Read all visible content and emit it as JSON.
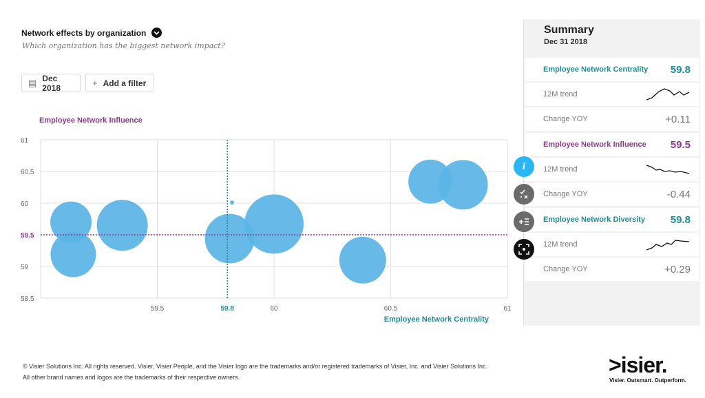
{
  "header": {
    "title": "Network effects by organization",
    "subtitle": "Which organization has the biggest network impact?"
  },
  "toolbar": {
    "date_label": "Dec 2018",
    "filter_label": "Add a filter"
  },
  "chart_data": {
    "type": "scatter",
    "title": "Network effects by organization",
    "xlabel": "Employee Network Centrality",
    "ylabel": "Employee Network Influence",
    "xlim": [
      59.0,
      61.0
    ],
    "ylim": [
      58.5,
      61.0
    ],
    "xticks": [
      "59.5",
      "59.8",
      "60",
      "60.5",
      "61"
    ],
    "xtick_values": [
      59.5,
      59.8,
      60.0,
      60.5,
      61.0
    ],
    "yticks": [
      "61",
      "60.5",
      "60",
      "59.5",
      "59",
      "58.5"
    ],
    "ytick_values": [
      61.0,
      60.5,
      60.0,
      59.5,
      59.0,
      58.5
    ],
    "reference_x": 59.8,
    "reference_y": 59.5,
    "bubble_color": "#5ab4e6",
    "points": [
      {
        "x": 59.13,
        "y": 59.7,
        "size": 30
      },
      {
        "x": 59.14,
        "y": 59.19,
        "size": 33
      },
      {
        "x": 59.35,
        "y": 59.65,
        "size": 37
      },
      {
        "x": 59.81,
        "y": 59.44,
        "size": 36
      },
      {
        "x": 59.82,
        "y": 60.01,
        "size": 3
      },
      {
        "x": 60.0,
        "y": 59.67,
        "size": 43
      },
      {
        "x": 60.38,
        "y": 59.1,
        "size": 34
      },
      {
        "x": 60.67,
        "y": 60.34,
        "size": 32
      },
      {
        "x": 60.81,
        "y": 60.29,
        "size": 36
      }
    ]
  },
  "summary": {
    "title": "Summary",
    "date": "Dec 31 2018",
    "metrics": [
      {
        "name": "Employee Network Centrality",
        "value": "59.8",
        "trend_label": "12M trend",
        "change_label": "Change YOY",
        "change": "+0.11",
        "color": "#1f8a99"
      },
      {
        "name": "Employee Network Influence",
        "value": "59.5",
        "trend_label": "12M trend",
        "change_label": "Change YOY",
        "change": "-0.44",
        "color": "#8e3a8e"
      },
      {
        "name": "Employee Network Diversity",
        "value": "59.8",
        "trend_label": "12M trend",
        "change_label": "Change YOY",
        "change": "+0.29",
        "color": "#1f8a99"
      }
    ]
  },
  "colors": {
    "centrality": "#1f8a99",
    "influence": "#8e3a8e",
    "info_button": "#29b6f6"
  },
  "footer": {
    "line1": "© Visier Solutions Inc. All rights reserved. Visier, Visier People, and the Visier logo are the trademarks and/or registered trademarks of Visier, Inc. and Visier Solutions Inc.",
    "line2": "All other brand names and logos are the trademarks of their respective owners.",
    "logo": ">isier.",
    "tagline": "Visier. Outsmart. Outperform."
  }
}
